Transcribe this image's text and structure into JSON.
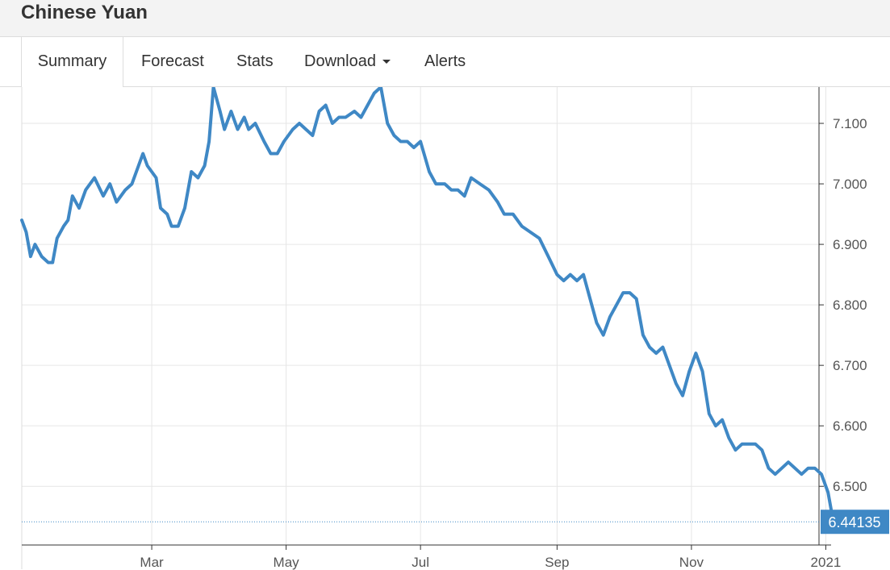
{
  "page": {
    "title": "Chinese Yuan"
  },
  "tabs": [
    {
      "label": "Summary",
      "active": true
    },
    {
      "label": "Forecast"
    },
    {
      "label": "Stats"
    },
    {
      "label": "Download",
      "dropdown": true
    },
    {
      "label": "Alerts"
    }
  ],
  "colors": {
    "line": "#3f88c5",
    "grid": "#e6e6e6",
    "axis": "#333333",
    "value_badge": "#3f88c5"
  },
  "chart_data": {
    "type": "line",
    "title": "",
    "xlabel": "",
    "ylabel": "",
    "ylim": [
      6.403,
      7.16
    ],
    "xlim": [
      "2020-01-02",
      "2021-01-08"
    ],
    "x_ticks": [
      {
        "date": "2020-03-01",
        "label": "Mar"
      },
      {
        "date": "2020-05-01",
        "label": "May"
      },
      {
        "date": "2020-07-01",
        "label": "Jul"
      },
      {
        "date": "2020-09-01",
        "label": "Sep"
      },
      {
        "date": "2020-11-01",
        "label": "Nov"
      },
      {
        "date": "2021-01-01",
        "label": "2021"
      }
    ],
    "y_ticks": [
      {
        "value": 6.5,
        "label": "6.500"
      },
      {
        "value": 6.6,
        "label": "6.600"
      },
      {
        "value": 6.7,
        "label": "6.700"
      },
      {
        "value": 6.8,
        "label": "6.800"
      },
      {
        "value": 6.9,
        "label": "6.900"
      },
      {
        "value": 7.0,
        "label": "7.000"
      },
      {
        "value": 7.1,
        "label": "7.100"
      }
    ],
    "grid": true,
    "current_value": 6.44135,
    "current_value_label": "6.44135",
    "series": [
      {
        "points": [
          [
            "2020-01-02",
            6.94
          ],
          [
            "2020-01-04",
            6.92
          ],
          [
            "2020-01-06",
            6.88
          ],
          [
            "2020-01-08",
            6.9
          ],
          [
            "2020-01-11",
            6.88
          ],
          [
            "2020-01-14",
            6.87
          ],
          [
            "2020-01-16",
            6.87
          ],
          [
            "2020-01-18",
            6.91
          ],
          [
            "2020-01-21",
            6.93
          ],
          [
            "2020-01-23",
            6.94
          ],
          [
            "2020-01-25",
            6.98
          ],
          [
            "2020-01-28",
            6.96
          ],
          [
            "2020-01-31",
            6.99
          ],
          [
            "2020-02-04",
            7.01
          ],
          [
            "2020-02-08",
            6.98
          ],
          [
            "2020-02-11",
            7.0
          ],
          [
            "2020-02-14",
            6.97
          ],
          [
            "2020-02-18",
            6.99
          ],
          [
            "2020-02-21",
            7.0
          ],
          [
            "2020-02-24",
            7.03
          ],
          [
            "2020-02-26",
            7.05
          ],
          [
            "2020-02-28",
            7.03
          ],
          [
            "2020-03-03",
            7.01
          ],
          [
            "2020-03-05",
            6.96
          ],
          [
            "2020-03-08",
            6.95
          ],
          [
            "2020-03-10",
            6.93
          ],
          [
            "2020-03-13",
            6.93
          ],
          [
            "2020-03-16",
            6.96
          ],
          [
            "2020-03-19",
            7.02
          ],
          [
            "2020-03-22",
            7.01
          ],
          [
            "2020-03-25",
            7.03
          ],
          [
            "2020-03-27",
            7.07
          ],
          [
            "2020-03-29",
            7.16
          ],
          [
            "2020-04-01",
            7.12
          ],
          [
            "2020-04-03",
            7.09
          ],
          [
            "2020-04-06",
            7.12
          ],
          [
            "2020-04-09",
            7.09
          ],
          [
            "2020-04-12",
            7.11
          ],
          [
            "2020-04-14",
            7.09
          ],
          [
            "2020-04-17",
            7.1
          ],
          [
            "2020-04-21",
            7.07
          ],
          [
            "2020-04-24",
            7.05
          ],
          [
            "2020-04-27",
            7.05
          ],
          [
            "2020-04-30",
            7.07
          ],
          [
            "2020-05-04",
            7.09
          ],
          [
            "2020-05-07",
            7.1
          ],
          [
            "2020-05-10",
            7.09
          ],
          [
            "2020-05-13",
            7.08
          ],
          [
            "2020-05-16",
            7.12
          ],
          [
            "2020-05-19",
            7.13
          ],
          [
            "2020-05-22",
            7.1
          ],
          [
            "2020-05-25",
            7.11
          ],
          [
            "2020-05-28",
            7.11
          ],
          [
            "2020-06-01",
            7.12
          ],
          [
            "2020-06-04",
            7.11
          ],
          [
            "2020-06-07",
            7.13
          ],
          [
            "2020-06-10",
            7.15
          ],
          [
            "2020-06-13",
            7.16
          ],
          [
            "2020-06-16",
            7.1
          ],
          [
            "2020-06-19",
            7.08
          ],
          [
            "2020-06-22",
            7.07
          ],
          [
            "2020-06-25",
            7.07
          ],
          [
            "2020-06-28",
            7.06
          ],
          [
            "2020-07-01",
            7.07
          ],
          [
            "2020-07-05",
            7.02
          ],
          [
            "2020-07-08",
            7.0
          ],
          [
            "2020-07-12",
            7.0
          ],
          [
            "2020-07-15",
            6.99
          ],
          [
            "2020-07-18",
            6.99
          ],
          [
            "2020-07-21",
            6.98
          ],
          [
            "2020-07-24",
            7.01
          ],
          [
            "2020-07-28",
            7.0
          ],
          [
            "2020-08-01",
            6.99
          ],
          [
            "2020-08-05",
            6.97
          ],
          [
            "2020-08-08",
            6.95
          ],
          [
            "2020-08-12",
            6.95
          ],
          [
            "2020-08-16",
            6.93
          ],
          [
            "2020-08-20",
            6.92
          ],
          [
            "2020-08-24",
            6.91
          ],
          [
            "2020-08-28",
            6.88
          ],
          [
            "2020-09-01",
            6.85
          ],
          [
            "2020-09-04",
            6.84
          ],
          [
            "2020-09-07",
            6.85
          ],
          [
            "2020-09-10",
            6.84
          ],
          [
            "2020-09-13",
            6.85
          ],
          [
            "2020-09-16",
            6.81
          ],
          [
            "2020-09-19",
            6.77
          ],
          [
            "2020-09-22",
            6.75
          ],
          [
            "2020-09-25",
            6.78
          ],
          [
            "2020-09-28",
            6.8
          ],
          [
            "2020-10-01",
            6.82
          ],
          [
            "2020-10-04",
            6.82
          ],
          [
            "2020-10-07",
            6.81
          ],
          [
            "2020-10-10",
            6.75
          ],
          [
            "2020-10-13",
            6.73
          ],
          [
            "2020-10-16",
            6.72
          ],
          [
            "2020-10-19",
            6.73
          ],
          [
            "2020-10-22",
            6.7
          ],
          [
            "2020-10-25",
            6.67
          ],
          [
            "2020-10-28",
            6.65
          ],
          [
            "2020-10-31",
            6.69
          ],
          [
            "2020-11-03",
            6.72
          ],
          [
            "2020-11-06",
            6.69
          ],
          [
            "2020-11-09",
            6.62
          ],
          [
            "2020-11-12",
            6.6
          ],
          [
            "2020-11-15",
            6.61
          ],
          [
            "2020-11-18",
            6.58
          ],
          [
            "2020-11-21",
            6.56
          ],
          [
            "2020-11-24",
            6.57
          ],
          [
            "2020-11-27",
            6.57
          ],
          [
            "2020-11-30",
            6.57
          ],
          [
            "2020-12-03",
            6.56
          ],
          [
            "2020-12-06",
            6.53
          ],
          [
            "2020-12-09",
            6.52
          ],
          [
            "2020-12-12",
            6.53
          ],
          [
            "2020-12-15",
            6.54
          ],
          [
            "2020-12-18",
            6.53
          ],
          [
            "2020-12-21",
            6.52
          ],
          [
            "2020-12-24",
            6.53
          ],
          [
            "2020-12-27",
            6.53
          ],
          [
            "2020-12-30",
            6.52
          ],
          [
            "2021-01-02",
            6.49
          ],
          [
            "2021-01-04",
            6.45
          ],
          [
            "2021-01-06",
            6.44
          ],
          [
            "2021-01-07",
            6.44135
          ]
        ]
      }
    ]
  }
}
